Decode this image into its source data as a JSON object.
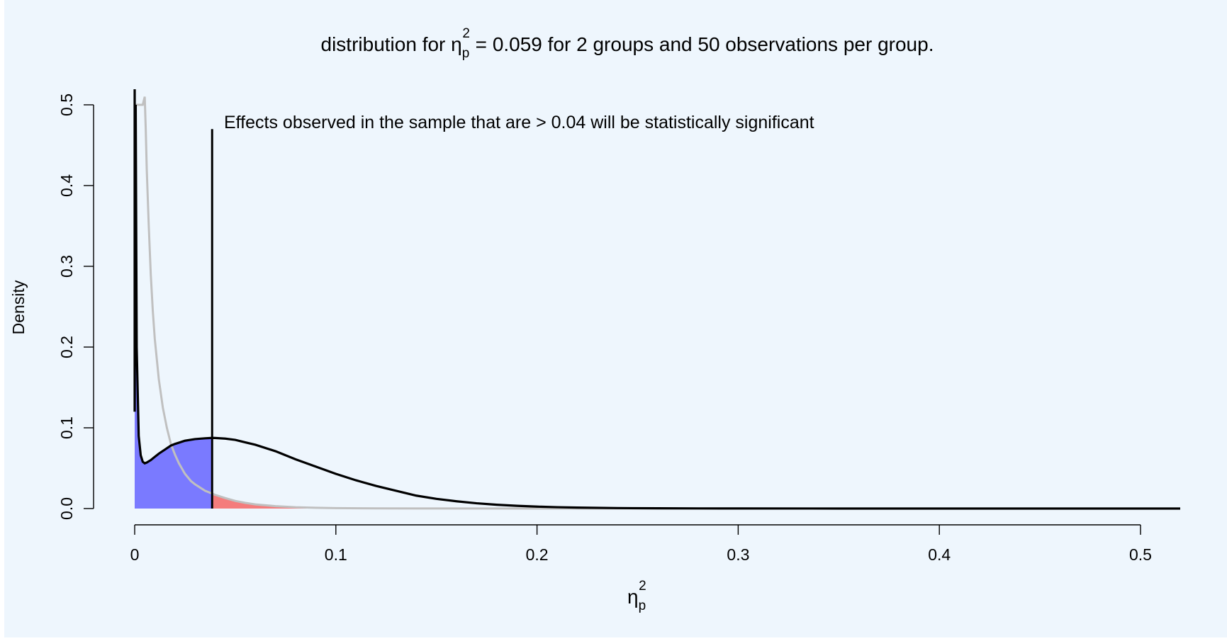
{
  "chart_data": {
    "type": "area",
    "title": {
      "prefix": "distribution for ",
      "symbol": "η",
      "sub": "p",
      "sup": "2",
      "equals": " = ",
      "value": "0.059",
      "suffix": " for 2 groups and 50 observations per group."
    },
    "xlabel": {
      "symbol": "η",
      "sub": "p",
      "sup": "2"
    },
    "ylabel": "Density",
    "xlim": [
      0,
      0.52
    ],
    "ylim": [
      0,
      0.5
    ],
    "x_ticks": [
      {
        "value": 0,
        "label": "0"
      },
      {
        "value": 0.1,
        "label": "0.1"
      },
      {
        "value": 0.2,
        "label": "0.2"
      },
      {
        "value": 0.3,
        "label": "0.3"
      },
      {
        "value": 0.4,
        "label": "0.4"
      },
      {
        "value": 0.5,
        "label": "0.5"
      }
    ],
    "y_ticks": [
      {
        "value": 0,
        "label": "0.0"
      },
      {
        "value": 0.1,
        "label": "0.1"
      },
      {
        "value": 0.2,
        "label": "0.2"
      },
      {
        "value": 0.3,
        "label": "0.3"
      },
      {
        "value": 0.4,
        "label": "0.4"
      },
      {
        "value": 0.5,
        "label": "0.5"
      }
    ],
    "critical_value": 0.0385,
    "critical_line_top": 0.47,
    "annotation": "Effects observed in the sample that are >  0.04 will be statistically significant",
    "grid": false,
    "colors": {
      "background": "#eef6fd",
      "alternative_curve": "#000000",
      "null_curve": "#c0c0c0",
      "power_fill": "#7a7aff",
      "alpha_fill": "#f47c7c",
      "critical_line": "#000000"
    },
    "series": [
      {
        "role": "alternative",
        "x": [
          0.0005,
          0.001,
          0.002,
          0.003,
          0.004,
          0.005,
          0.006,
          0.008,
          0.01,
          0.012,
          0.015,
          0.018,
          0.02,
          0.025,
          0.03,
          0.035,
          0.0385,
          0.04,
          0.045,
          0.05,
          0.055,
          0.06,
          0.07,
          0.08,
          0.09,
          0.1,
          0.11,
          0.12,
          0.13,
          0.14,
          0.15,
          0.16,
          0.17,
          0.18,
          0.19,
          0.2,
          0.21,
          0.22,
          0.24,
          0.26,
          0.28,
          0.3,
          0.35,
          0.4,
          0.45,
          0.5,
          0.52
        ],
        "y": [
          0.5,
          0.2,
          0.09,
          0.066,
          0.058,
          0.056,
          0.057,
          0.06,
          0.064,
          0.068,
          0.073,
          0.078,
          0.08,
          0.084,
          0.086,
          0.087,
          0.0875,
          0.0874,
          0.0866,
          0.085,
          0.082,
          0.079,
          0.071,
          0.061,
          0.052,
          0.043,
          0.035,
          0.028,
          0.022,
          0.016,
          0.012,
          0.009,
          0.0065,
          0.0047,
          0.0034,
          0.0024,
          0.0017,
          0.0012,
          0.0006,
          0.0003,
          0.00015,
          8e-05,
          2e-05,
          0.0,
          0.0,
          0.0,
          0.0
        ]
      },
      {
        "role": "null",
        "x": [
          0.0005,
          0.001,
          0.002,
          0.003,
          0.004,
          0.005,
          0.0055,
          0.006,
          0.007,
          0.008,
          0.009,
          0.01,
          0.012,
          0.014,
          0.016,
          0.018,
          0.02,
          0.022,
          0.025,
          0.028,
          0.03,
          0.035,
          0.0385,
          0.04,
          0.045,
          0.05,
          0.055,
          0.06,
          0.07,
          0.08,
          0.09,
          0.1,
          0.12,
          0.14,
          0.2,
          0.3,
          0.52
        ],
        "y": [
          0.5,
          0.5,
          0.5,
          0.5,
          0.5,
          0.51,
          0.47,
          0.42,
          0.35,
          0.29,
          0.245,
          0.21,
          0.16,
          0.125,
          0.1,
          0.08,
          0.067,
          0.056,
          0.043,
          0.034,
          0.03,
          0.022,
          0.0185,
          0.017,
          0.013,
          0.0095,
          0.007,
          0.0052,
          0.003,
          0.0017,
          0.001,
          0.0006,
          0.0002,
          8e-05,
          0.0,
          0.0,
          0.0
        ]
      }
    ]
  }
}
